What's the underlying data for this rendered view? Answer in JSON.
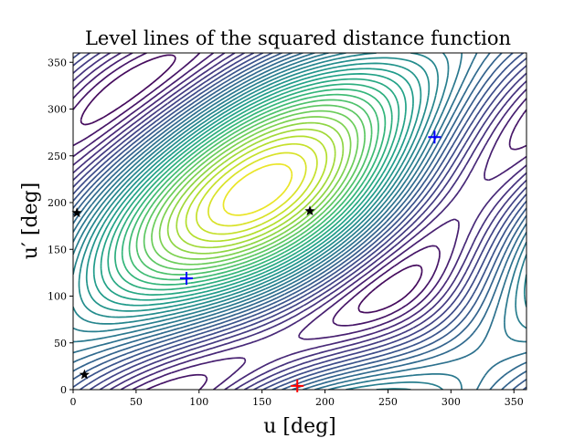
{
  "chart_data": {
    "type": "contour",
    "title": "Level lines of the squared distance function",
    "xlabel": "u [deg]",
    "ylabel": "u′ [deg]",
    "xlim": [
      0,
      360
    ],
    "ylim": [
      0,
      360
    ],
    "xticks": [
      "0",
      "50",
      "100",
      "150",
      "200",
      "250",
      "300",
      "350"
    ],
    "yticks": [
      "0",
      "50",
      "100",
      "150",
      "200",
      "250",
      "300",
      "350"
    ],
    "xtick_values": [
      0,
      50,
      100,
      150,
      200,
      250,
      300,
      350
    ],
    "ytick_values": [
      0,
      50,
      100,
      150,
      200,
      250,
      300,
      350
    ],
    "grid": false,
    "colormap": "viridis",
    "markers": {
      "blue_plus": [
        {
          "x": 90,
          "y": 119
        },
        {
          "x": 287,
          "y": 270
        }
      ],
      "red_plus": [
        {
          "x": 178,
          "y": 4
        }
      ],
      "black_star": [
        {
          "x": 3,
          "y": 189
        },
        {
          "x": 9,
          "y": 16
        },
        {
          "x": 188,
          "y": 191
        }
      ]
    },
    "colors": {
      "blue_plus": "#0000ff",
      "red_plus": "#ff0000",
      "black_star": "#000000"
    }
  }
}
